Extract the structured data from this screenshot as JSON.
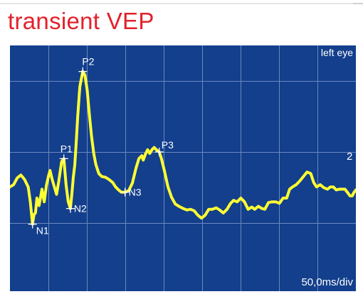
{
  "page": {
    "title": "transient VEP"
  },
  "colors": {
    "title": "#e3202b",
    "plot_background": "#133f8c",
    "grid": "#6d87bf",
    "trace": "#ffff33",
    "marker": "#ffffff",
    "text": "#ffffff"
  },
  "chart_data": {
    "type": "line",
    "title": "",
    "xlabel": "",
    "ylabel": "",
    "corner_label": "left eye",
    "scale_label": "50,0ms/div",
    "trace_label": "2",
    "xlim": [
      0,
      475
    ],
    "ylim": [
      -1.4,
      1.9
    ],
    "grid": true,
    "x_divisions": 9,
    "series": [
      {
        "values": [
          [
            0,
            0
          ],
          [
            5,
            0.03
          ],
          [
            10,
            0.12
          ],
          [
            15,
            0.16
          ],
          [
            20,
            0.1
          ],
          [
            25,
            0.0
          ],
          [
            28,
            -0.2
          ],
          [
            31,
            -0.5
          ],
          [
            33,
            -0.37
          ],
          [
            35,
            -0.35
          ],
          [
            37,
            -0.15
          ],
          [
            40,
            -0.25
          ],
          [
            44,
            -0.03
          ],
          [
            47,
            -0.2
          ],
          [
            50,
            0.02
          ],
          [
            53,
            0.15
          ],
          [
            55,
            0.22
          ],
          [
            58,
            0.1
          ],
          [
            61,
            0.0
          ],
          [
            64,
            -0.1
          ],
          [
            67,
            0.08
          ],
          [
            71,
            0.34
          ],
          [
            74,
            0.38
          ],
          [
            77,
            0.03
          ],
          [
            80,
            -0.2
          ],
          [
            83,
            -0.29
          ],
          [
            85,
            -0.09
          ],
          [
            87,
            0.13
          ],
          [
            89,
            0.3
          ],
          [
            91,
            0.6
          ],
          [
            93,
            0.95
          ],
          [
            96,
            1.35
          ],
          [
            100,
            1.55
          ],
          [
            103,
            1.5
          ],
          [
            106,
            1.3
          ],
          [
            109,
            0.98
          ],
          [
            112,
            0.68
          ],
          [
            115,
            0.45
          ],
          [
            118,
            0.3
          ],
          [
            122,
            0.18
          ],
          [
            126,
            0.14
          ],
          [
            131,
            0.13
          ],
          [
            136,
            0.1
          ],
          [
            141,
            0.06
          ],
          [
            145,
            0.0
          ],
          [
            149,
            -0.04
          ],
          [
            153,
            -0.07
          ],
          [
            158,
            -0.07
          ],
          [
            163,
            -0.05
          ],
          [
            168,
            0.05
          ],
          [
            173,
            0.25
          ],
          [
            177,
            0.38
          ],
          [
            181,
            0.42
          ],
          [
            183,
            0.36
          ],
          [
            186,
            0.44
          ],
          [
            189,
            0.5
          ],
          [
            192,
            0.45
          ],
          [
            195,
            0.5
          ],
          [
            198,
            0.53
          ],
          [
            201,
            0.5
          ],
          [
            205,
            0.47
          ],
          [
            208,
            0.38
          ],
          [
            212,
            0.22
          ],
          [
            217,
            0.0
          ],
          [
            222,
            -0.14
          ],
          [
            227,
            -0.23
          ],
          [
            232,
            -0.26
          ],
          [
            238,
            -0.29
          ],
          [
            243,
            -0.31
          ],
          [
            248,
            -0.3
          ],
          [
            253,
            -0.32
          ],
          [
            258,
            -0.38
          ],
          [
            263,
            -0.42
          ],
          [
            268,
            -0.38
          ],
          [
            273,
            -0.3
          ],
          [
            278,
            -0.3
          ],
          [
            283,
            -0.28
          ],
          [
            288,
            -0.31
          ],
          [
            293,
            -0.35
          ],
          [
            298,
            -0.3
          ],
          [
            303,
            -0.22
          ],
          [
            307,
            -0.18
          ],
          [
            312,
            -0.2
          ],
          [
            317,
            -0.15
          ],
          [
            322,
            -0.2
          ],
          [
            327,
            -0.3
          ],
          [
            332,
            -0.27
          ],
          [
            336,
            -0.3
          ],
          [
            341,
            -0.26
          ],
          [
            346,
            -0.29
          ],
          [
            350,
            -0.3
          ],
          [
            355,
            -0.21
          ],
          [
            360,
            -0.2
          ],
          [
            365,
            -0.2
          ],
          [
            370,
            -0.22
          ],
          [
            375,
            -0.15
          ],
          [
            380,
            -0.15
          ],
          [
            384,
            -0.03
          ],
          [
            388,
            0.0
          ],
          [
            393,
            0.03
          ],
          [
            398,
            0.08
          ],
          [
            403,
            0.14
          ],
          [
            408,
            0.2
          ],
          [
            413,
            0.18
          ],
          [
            417,
            0.06
          ],
          [
            421,
            0.0
          ],
          [
            426,
            0.03
          ],
          [
            431,
            -0.01
          ],
          [
            436,
            -0.03
          ],
          [
            440,
            0.0
          ],
          [
            444,
            0.0
          ],
          [
            448,
            -0.04
          ],
          [
            452,
            -0.03
          ],
          [
            456,
            -0.03
          ],
          [
            460,
            -0.03
          ],
          [
            464,
            -0.08
          ],
          [
            467,
            -0.12
          ],
          [
            470,
            -0.12
          ],
          [
            472,
            -0.08
          ],
          [
            475,
            -0.04
          ]
        ]
      }
    ],
    "annotations": [
      {
        "label": "N1",
        "x": 31,
        "y": -0.5
      },
      {
        "label": "P1",
        "x": 74,
        "y": 0.38
      },
      {
        "label": "N2",
        "x": 83,
        "y": -0.29
      },
      {
        "label": "P2",
        "x": 100,
        "y": 1.55
      },
      {
        "label": "N3",
        "x": 158,
        "y": -0.07
      },
      {
        "label": "P3",
        "x": 205,
        "y": 0.47
      }
    ]
  }
}
